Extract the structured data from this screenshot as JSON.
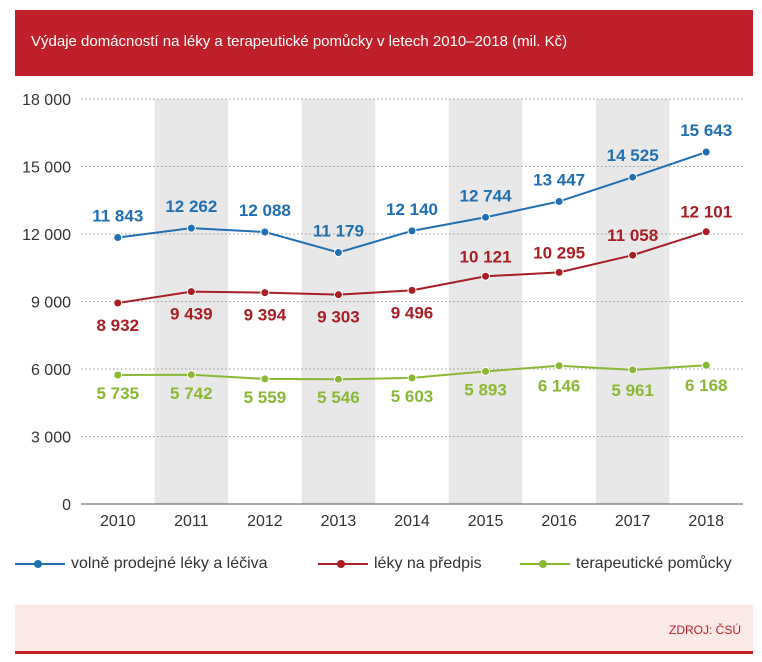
{
  "title": "Výdaje domácností na léky a terapeutické pomůcky v letech 2010–2018 (mil. Kč)",
  "source": "ZDROJ: ČSÚ",
  "colors": {
    "accent": "#c0202a",
    "source_bg": "#fbe9e7",
    "band": "#e8e8e8"
  },
  "chart_data": {
    "type": "line",
    "title": "Výdaje domácností na léky a terapeutické pomůcky v letech 2010–2018 (mil. Kč)",
    "xlabel": "",
    "ylabel": "",
    "categories": [
      "2010",
      "2011",
      "2012",
      "2013",
      "2014",
      "2015",
      "2016",
      "2017",
      "2018"
    ],
    "ylim": [
      0,
      18000
    ],
    "yticks": [
      0,
      3000,
      6000,
      9000,
      12000,
      15000,
      18000
    ],
    "ytick_labels": [
      "0",
      "3 000",
      "6 000",
      "9 000",
      "12 000",
      "15 000",
      "18 000"
    ],
    "grid": "horizontal-dotted",
    "legend_position": "bottom",
    "series": [
      {
        "name": "volně prodejné léky a léčiva",
        "color": "#1f6fb2",
        "values": [
          11843,
          12262,
          12088,
          11179,
          12140,
          12744,
          13447,
          14525,
          15643
        ],
        "labels": [
          "11 843",
          "12 262",
          "12 088",
          "11 179",
          "12 140",
          "12 744",
          "13 447",
          "14 525",
          "15 643"
        ]
      },
      {
        "name": "léky na předpis",
        "color": "#a81e24",
        "values": [
          8932,
          9439,
          9394,
          9303,
          9496,
          10121,
          10295,
          11058,
          12101
        ],
        "labels": [
          "8 932",
          "9 439",
          "9 394",
          "9 303",
          "9 496",
          "10 121",
          "10 295",
          "11 058",
          "12 101"
        ]
      },
      {
        "name": "terapeutické pomůcky",
        "color": "#8ab833",
        "values": [
          5735,
          5742,
          5559,
          5546,
          5603,
          5893,
          6146,
          5961,
          6168
        ],
        "labels": [
          "5 735",
          "5 742",
          "5 559",
          "5 546",
          "5 603",
          "5 893",
          "6 146",
          "5 961",
          "6 168"
        ]
      }
    ]
  }
}
